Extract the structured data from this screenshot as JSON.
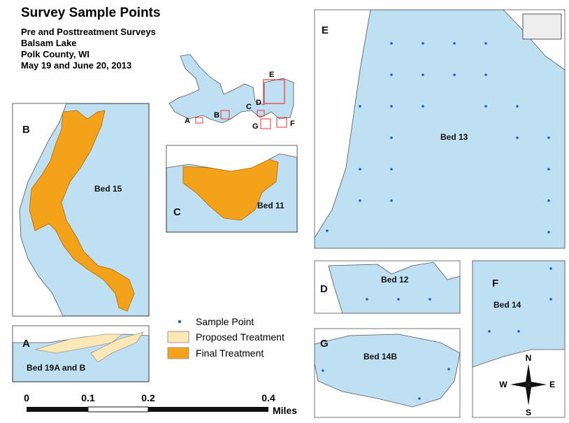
{
  "header": {
    "title": "Survey Sample Points",
    "subtitle_lines": [
      "Pre and Posttreatment Surveys",
      "Balsam Lake",
      "Polk County, WI",
      "May 19 and June 20, 2013"
    ]
  },
  "overview": {
    "labels": [
      "A",
      "B",
      "C",
      "D",
      "E",
      "F",
      "G"
    ]
  },
  "panels": [
    {
      "letter": "B",
      "bed": "Bed 15"
    },
    {
      "letter": "C",
      "bed": "Bed 11"
    },
    {
      "letter": "A",
      "bed": "Bed 19A and B"
    },
    {
      "letter": "E",
      "bed": "Bed 13"
    },
    {
      "letter": "D",
      "bed": "Bed 12"
    },
    {
      "letter": "G",
      "bed": "Bed 14B"
    },
    {
      "letter": "F",
      "bed": "Bed 14"
    }
  ],
  "legend": {
    "items": [
      "Sample Point",
      "Proposed Treatment",
      "Final Treatment"
    ]
  },
  "scale_bar": {
    "labels": [
      "0",
      "0.1",
      "0.2",
      "0.4"
    ],
    "unit": "Miles"
  },
  "compass": {
    "n": "N",
    "s": "S",
    "e": "E",
    "w": "W"
  }
}
